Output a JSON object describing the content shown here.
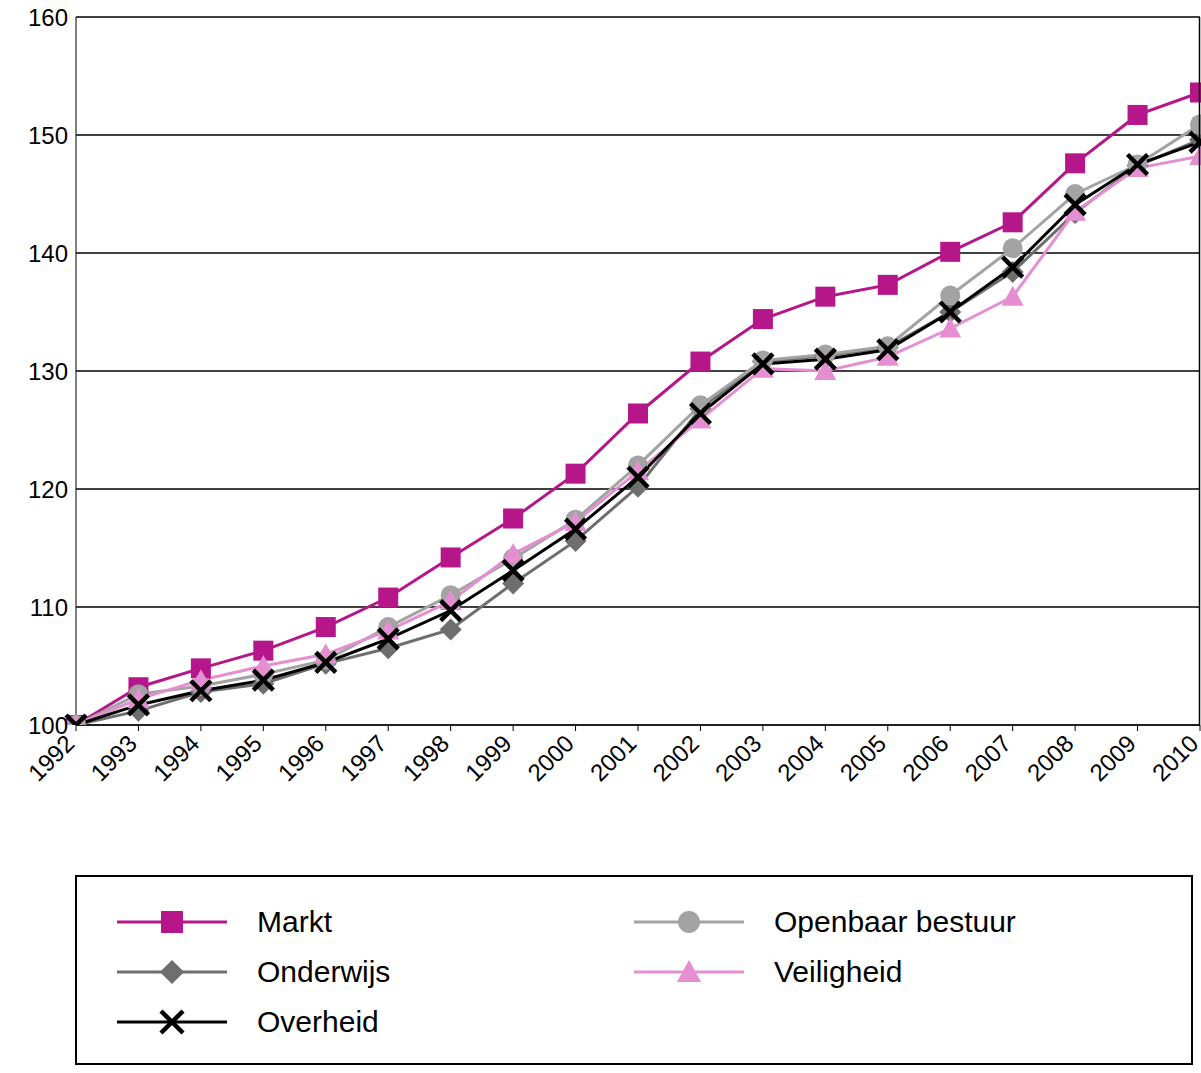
{
  "chart_data": {
    "type": "line",
    "categories": [
      "1992",
      "1993",
      "1994",
      "1995",
      "1996",
      "1997",
      "1998",
      "1999",
      "2000",
      "2001",
      "2002",
      "2003",
      "2004",
      "2005",
      "2006",
      "2007",
      "2008",
      "2009",
      "2010"
    ],
    "series": [
      {
        "name": "Markt",
        "color": "#b5168a",
        "marker": "square",
        "values": [
          100,
          103.2,
          104.8,
          106.3,
          108.3,
          110.8,
          114.2,
          117.5,
          121.3,
          126.4,
          130.8,
          134.4,
          136.3,
          137.3,
          140.1,
          142.6,
          147.6,
          151.7,
          153.6
        ]
      },
      {
        "name": "Onderwijs",
        "color": "#6e6e6e",
        "marker": "diamond",
        "values": [
          100,
          101.2,
          102.8,
          103.5,
          105.2,
          106.5,
          108.1,
          112.0,
          115.6,
          120.2,
          126.8,
          130.8,
          131.3,
          132.0,
          135.0,
          138.4,
          143.4,
          147.4,
          149.6
        ]
      },
      {
        "name": "Overheid",
        "color": "#000000",
        "marker": "cross",
        "values": [
          100,
          101.7,
          102.9,
          103.8,
          105.3,
          107.3,
          109.7,
          113.1,
          116.6,
          121.0,
          126.4,
          130.6,
          131.0,
          131.8,
          135.0,
          138.8,
          144.1,
          147.5,
          149.4
        ]
      },
      {
        "name": "Openbaar bestuur",
        "color": "#a3a3a3",
        "marker": "circle",
        "values": [
          100,
          102.6,
          103.3,
          104.3,
          105.5,
          108.3,
          111.0,
          114.1,
          117.4,
          122.0,
          127.1,
          130.9,
          131.4,
          132.1,
          136.4,
          140.4,
          145.0,
          147.5,
          150.9
        ]
      },
      {
        "name": "Veiligheid",
        "color": "#e58fd2",
        "marker": "triangle",
        "values": [
          100,
          102.2,
          103.8,
          105.0,
          106.0,
          108.0,
          110.5,
          114.5,
          117.2,
          121.5,
          125.9,
          130.2,
          130.0,
          131.2,
          133.6,
          136.3,
          143.5,
          147.2,
          148.2
        ]
      }
    ],
    "ylim": [
      100,
      160
    ],
    "yticks": [
      100,
      110,
      120,
      130,
      140,
      150,
      160
    ],
    "grid": true,
    "legend": "bottom"
  }
}
